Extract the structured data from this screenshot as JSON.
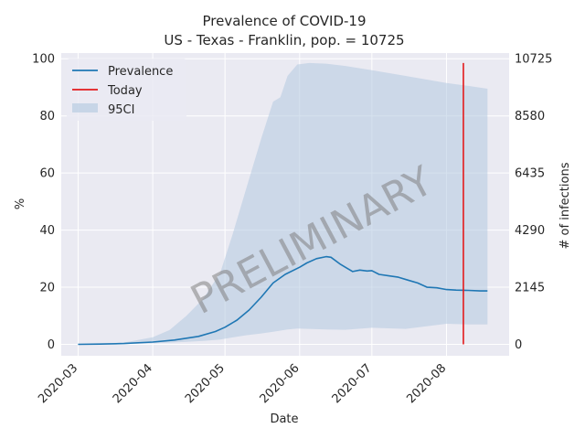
{
  "chart_data": {
    "type": "line",
    "title_line1": "Prevalence of COVID-19",
    "title_line2": "US - Texas - Franklin, pop. = 10725",
    "xlabel": "Date",
    "ylabel": "%",
    "ylabel_right": "# of infections",
    "ylim": [
      -4,
      102
    ],
    "x_range": [
      "2020-02-23",
      "2020-08-27"
    ],
    "x_ticks": [
      "2020-03",
      "2020-04",
      "2020-05",
      "2020-06",
      "2020-07",
      "2020-08"
    ],
    "y_ticks": [
      0,
      20,
      40,
      60,
      80,
      100
    ],
    "y_ticks_right": [
      0,
      2145,
      4290,
      6435,
      8580,
      10725
    ],
    "grid": true,
    "legend_position": "top-left",
    "legend": [
      "Prevalence",
      "Today",
      "95CI"
    ],
    "watermark": "PRELIMINARY",
    "colors": {
      "prevalence": "#1f77b4",
      "today": "#e31a1c",
      "ci_fill": "#b3c9e0",
      "background": "#eaeaf2",
      "grid": "#ffffff"
    },
    "today": {
      "x": "2020-08-08",
      "y_range": [
        0,
        98.5
      ]
    },
    "series": [
      {
        "name": "Prevalence",
        "x": [
          "2020-03-01",
          "2020-03-10",
          "2020-03-20",
          "2020-04-01",
          "2020-04-10",
          "2020-04-20",
          "2020-04-27",
          "2020-05-01",
          "2020-05-06",
          "2020-05-11",
          "2020-05-16",
          "2020-05-21",
          "2020-05-26",
          "2020-06-01",
          "2020-06-04",
          "2020-06-08",
          "2020-06-12",
          "2020-06-14",
          "2020-06-18",
          "2020-06-23",
          "2020-06-26",
          "2020-06-29",
          "2020-07-01",
          "2020-07-04",
          "2020-07-08",
          "2020-07-12",
          "2020-07-16",
          "2020-07-20",
          "2020-07-24",
          "2020-07-28",
          "2020-08-01",
          "2020-08-05",
          "2020-08-10",
          "2020-08-15",
          "2020-08-18"
        ],
        "values": [
          0,
          0.1,
          0.3,
          0.8,
          1.5,
          2.8,
          4.5,
          6,
          8.5,
          12,
          16.5,
          21.5,
          24.5,
          27,
          28.5,
          30,
          30.7,
          30.5,
          28,
          25.5,
          26,
          25.7,
          25.8,
          24.5,
          24,
          23.5,
          22.5,
          21.5,
          20,
          19.8,
          19.2,
          19,
          18.9,
          18.7,
          18.7
        ]
      },
      {
        "name": "95CI",
        "x": [
          "2020-03-01",
          "2020-03-20",
          "2020-04-01",
          "2020-04-08",
          "2020-04-15",
          "2020-04-22",
          "2020-04-29",
          "2020-05-04",
          "2020-05-10",
          "2020-05-16",
          "2020-05-21",
          "2020-05-24",
          "2020-05-27",
          "2020-05-31",
          "2020-06-05",
          "2020-06-12",
          "2020-06-20",
          "2020-07-01",
          "2020-07-15",
          "2020-08-01",
          "2020-08-10",
          "2020-08-18"
        ],
        "upper": [
          0,
          0.6,
          2.5,
          5,
          10,
          16,
          25,
          38,
          55,
          72,
          85,
          86.5,
          94,
          98,
          98.5,
          98.3,
          97.5,
          96,
          94,
          91.5,
          90.5,
          89.5
        ],
        "lower": [
          0,
          0.1,
          0.4,
          0.6,
          0.9,
          1.2,
          1.7,
          2.4,
          3.2,
          3.8,
          4.4,
          4.8,
          5.2,
          5.5,
          5.4,
          5.2,
          5.1,
          5.8,
          5.4,
          7.2,
          7,
          7
        ]
      }
    ]
  }
}
